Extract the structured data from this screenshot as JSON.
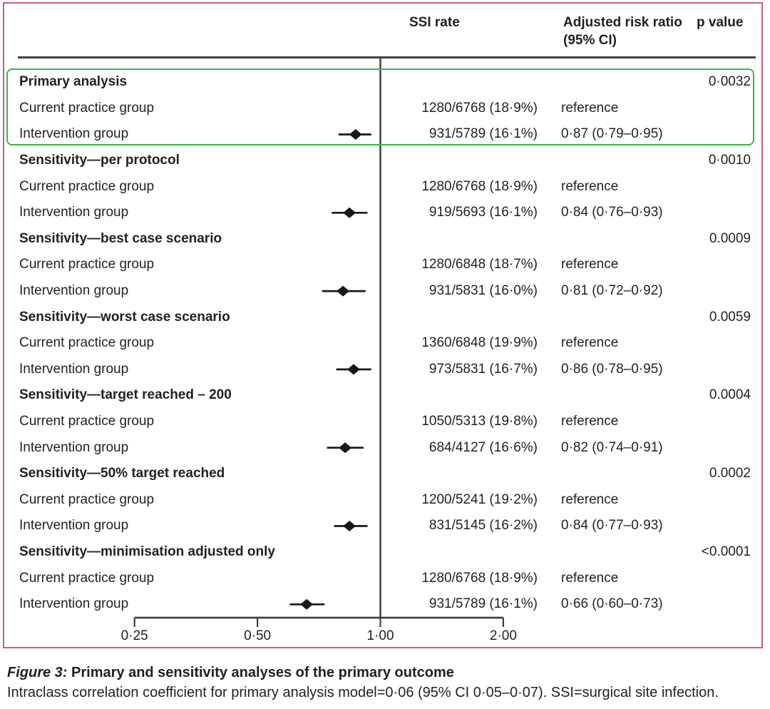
{
  "colors": {
    "frame_pink": "#c95f80",
    "highlight_green": "#3cb54a",
    "rule_gray": "#414042",
    "marker_black": "#1a1817",
    "text": "#231f20"
  },
  "chart_data": {
    "type": "forest",
    "header": {
      "ssi_rate": "SSI rate",
      "adjusted_rr_line1": "Adjusted risk ratio",
      "adjusted_rr_line2": "(95% CI)",
      "p_value": "p value"
    },
    "x_axis": {
      "scale": "log2",
      "reference_line": 1.0,
      "ticks": [
        {
          "label": "0·25",
          "value": 0.25
        },
        {
          "label": "0·50",
          "value": 0.5
        },
        {
          "label": "1·00",
          "value": 1.0
        },
        {
          "label": "2·00",
          "value": 2.0
        }
      ]
    },
    "sections": [
      {
        "label": "Primary analysis",
        "p_value": "0·0032",
        "highlighted": true,
        "rows": [
          {
            "label": "Current practice group",
            "ssi_rate": "1280/6768 (18·9%)",
            "risk_ratio": "reference"
          },
          {
            "label": "Intervention group",
            "ssi_rate": "931/5789 (16·1%)",
            "risk_ratio": "0·87 (0·79–0·95)",
            "estimate": 0.87,
            "ci_low": 0.79,
            "ci_high": 0.95
          }
        ]
      },
      {
        "label": "Sensitivity—per protocol",
        "p_value": "0·0010",
        "highlighted": false,
        "rows": [
          {
            "label": "Current practice group",
            "ssi_rate": "1280/6768 (18·9%)",
            "risk_ratio": "reference"
          },
          {
            "label": "Intervention group",
            "ssi_rate": "919/5693 (16·1%)",
            "risk_ratio": "0·84 (0·76–0·93)",
            "estimate": 0.84,
            "ci_low": 0.76,
            "ci_high": 0.93
          }
        ]
      },
      {
        "label": "Sensitivity—best case scenario",
        "p_value": "0.0009",
        "highlighted": false,
        "rows": [
          {
            "label": "Current practice group",
            "ssi_rate": "1280/6848 (18·7%)",
            "risk_ratio": "reference"
          },
          {
            "label": "Intervention group",
            "ssi_rate": "931/5831 (16·0%)",
            "risk_ratio": "0·81 (0·72–0·92)",
            "estimate": 0.81,
            "ci_low": 0.72,
            "ci_high": 0.92
          }
        ]
      },
      {
        "label": "Sensitivity—worst case scenario",
        "p_value": "0.0059",
        "highlighted": false,
        "rows": [
          {
            "label": "Current practice group",
            "ssi_rate": "1360/6848 (19·9%)",
            "risk_ratio": "reference"
          },
          {
            "label": "Intervention group",
            "ssi_rate": "973/5831 (16·7%)",
            "risk_ratio": "0·86 (0·78–0·95)",
            "estimate": 0.86,
            "ci_low": 0.78,
            "ci_high": 0.95
          }
        ]
      },
      {
        "label": "Sensitivity—target reached – 200",
        "p_value": "0.0004",
        "highlighted": false,
        "rows": [
          {
            "label": "Current practice group",
            "ssi_rate": "1050/5313 (19·8%)",
            "risk_ratio": "reference"
          },
          {
            "label": "Intervention group",
            "ssi_rate": "684/4127 (16·6%)",
            "risk_ratio": "0·82 (0·74–0·91)",
            "estimate": 0.82,
            "ci_low": 0.74,
            "ci_high": 0.91
          }
        ]
      },
      {
        "label": "Sensitivity—50% target reached",
        "p_value": "0.0002",
        "highlighted": false,
        "rows": [
          {
            "label": "Current practice group",
            "ssi_rate": "1200/5241 (19·2%)",
            "risk_ratio": "reference"
          },
          {
            "label": "Intervention group",
            "ssi_rate": "831/5145 (16·2%)",
            "risk_ratio": "0·84 (0·77–0·93)",
            "estimate": 0.84,
            "ci_low": 0.77,
            "ci_high": 0.93
          }
        ]
      },
      {
        "label": "Sensitivity—minimisation adjusted only",
        "p_value": "<0.0001",
        "highlighted": false,
        "rows": [
          {
            "label": "Current practice group",
            "ssi_rate": "1280/6768 (18·9%)",
            "risk_ratio": "reference"
          },
          {
            "label": "Intervention group",
            "ssi_rate": "931/5789 (16·1%)",
            "risk_ratio": "0·66 (0·60–0·73)",
            "estimate": 0.66,
            "ci_low": 0.6,
            "ci_high": 0.73
          }
        ]
      }
    ]
  },
  "caption": {
    "figure_label": "Figure 3:",
    "title": "Primary and sensitivity analyses of the primary outcome",
    "note": "Intraclass correlation coefficient for primary analysis model=0·06 (95% CI 0·05–0·07). SSI=surgical site infection."
  }
}
